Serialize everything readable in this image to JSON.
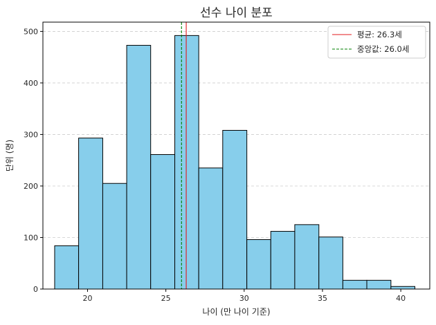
{
  "chart_data": {
    "type": "bar",
    "title": "선수 나이 분포",
    "xlabel": "나이 (만 나이 기준)",
    "ylabel": "단위 (명)",
    "xlim": [
      17.15,
      41.85
    ],
    "ylim": [
      0,
      518
    ],
    "xticks": [
      20,
      25,
      30,
      35,
      40
    ],
    "yticks": [
      0,
      100,
      200,
      300,
      400,
      500
    ],
    "grid": {
      "axis": "y",
      "style": "dashed"
    },
    "legend_position": "top-right",
    "bin_edges": [
      17.9,
      19.43,
      20.97,
      22.5,
      24.03,
      25.57,
      27.1,
      28.63,
      30.17,
      31.7,
      33.23,
      34.77,
      36.3,
      37.83,
      39.37,
      40.9
    ],
    "values": [
      84,
      293,
      205,
      473,
      261,
      492,
      235,
      308,
      96,
      112,
      125,
      101,
      17,
      17,
      5
    ],
    "bar_color": "#87ceeb",
    "bar_edge_color": "#000000",
    "reference_lines": [
      {
        "label": "평균: 26.3세",
        "value": 26.3,
        "color": "#e31a1c",
        "style": "solid"
      },
      {
        "label": "중앙값: 26.0세",
        "value": 26.0,
        "color": "#008000",
        "style": "dashed"
      }
    ]
  }
}
